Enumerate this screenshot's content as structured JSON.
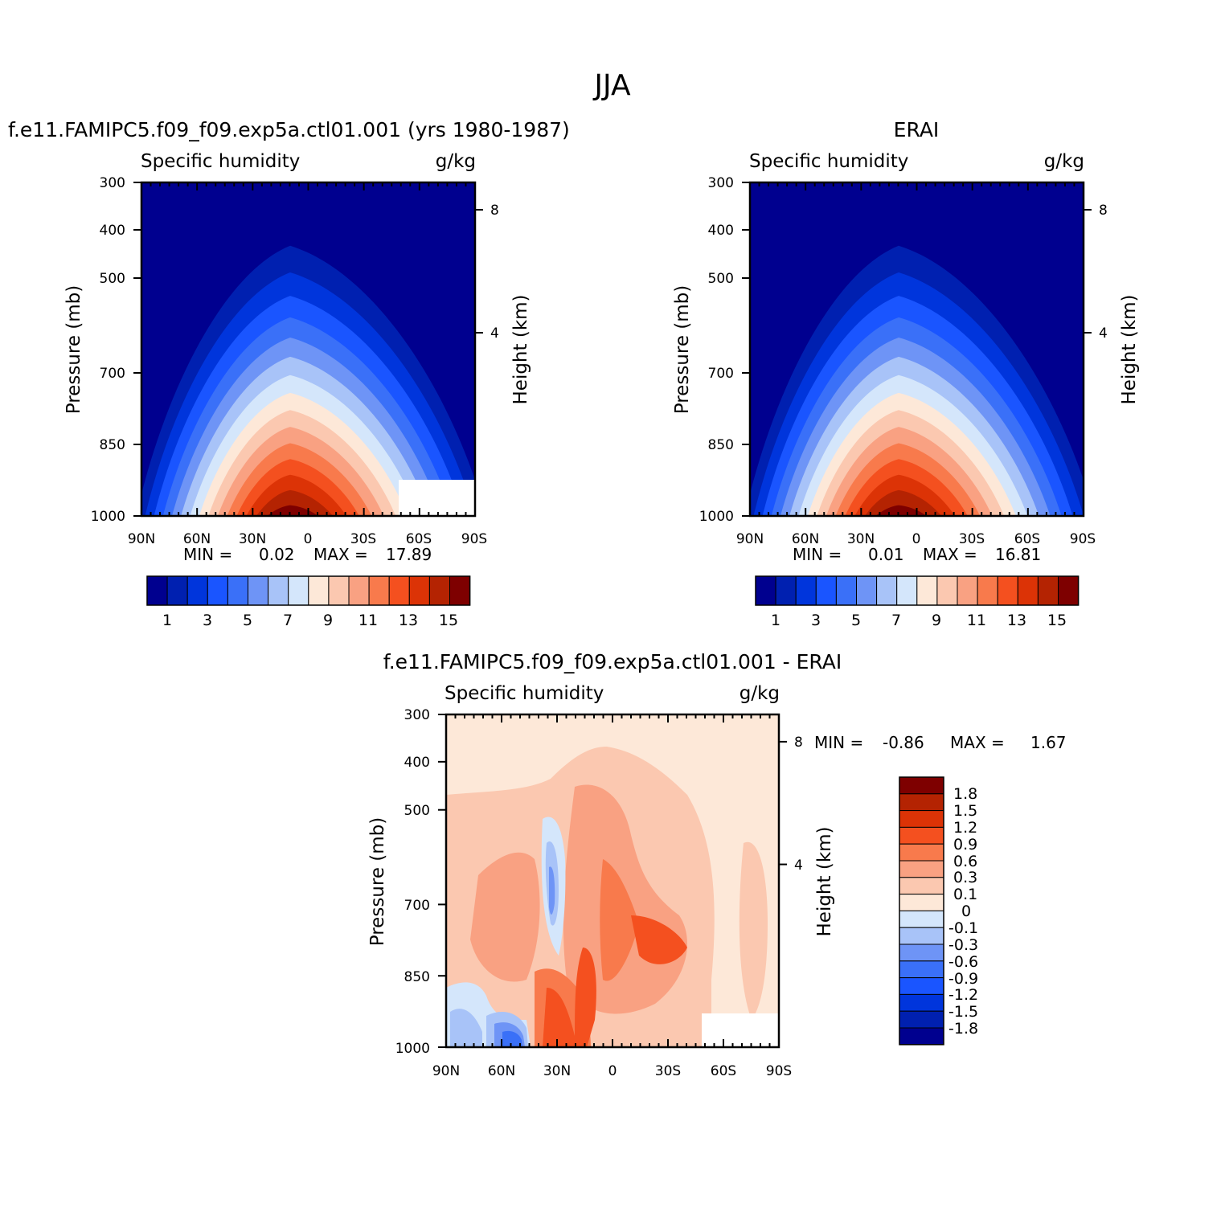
{
  "figure": {
    "title": "JJA"
  },
  "colors": {
    "abs": [
      "#00008f",
      "#0020b0",
      "#0035dc",
      "#1a55ff",
      "#3a70f8",
      "#6e94f6",
      "#a8c3f8",
      "#d4e6fb",
      "#fde8d8",
      "#fbc8b0",
      "#f9a182",
      "#f87a4c",
      "#f4501f",
      "#dc3306",
      "#b42302",
      "#7e0000"
    ],
    "diff": [
      "#7e0000",
      "#b42302",
      "#dc3306",
      "#f4501f",
      "#f87a4c",
      "#f9a182",
      "#fbc8b0",
      "#fde8d8",
      "#d4e6fb",
      "#a8c3f8",
      "#6e94f6",
      "#3a70f8",
      "#1a55ff",
      "#0035dc",
      "#0020b0",
      "#00008f"
    ]
  },
  "chart_data": [
    {
      "type": "heatmap",
      "title": "f.e11.FAMIPC5.f09_f09.exp5a.ctl01.001 (yrs 1980-1987)",
      "variable": "Specific humidity",
      "units": "g/kg",
      "xlabel": "",
      "ylabel": "Pressure (mb)",
      "y2label": "Height (km)",
      "x_ticks": [
        "90N",
        "60N",
        "30N",
        "0",
        "30S",
        "60S",
        "90S"
      ],
      "y_ticks": [
        "300",
        "400",
        "500",
        "700",
        "850",
        "1000"
      ],
      "y2_ticks": [
        "8",
        "4"
      ],
      "min_label": "MIN =",
      "min_value": "0.02",
      "max_label": "MAX =",
      "max_value": "17.89",
      "colorbar_labels": [
        "1",
        "3",
        "5",
        "7",
        "9",
        "11",
        "13",
        "15"
      ],
      "peak_value": 17.89
    },
    {
      "type": "heatmap",
      "title": "ERAI",
      "variable": "Specific humidity",
      "units": "g/kg",
      "xlabel": "",
      "ylabel": "Pressure (mb)",
      "y2label": "Height (km)",
      "x_ticks": [
        "90N",
        "60N",
        "30N",
        "0",
        "30S",
        "60S",
        "90S"
      ],
      "y_ticks": [
        "300",
        "400",
        "500",
        "700",
        "850",
        "1000"
      ],
      "y2_ticks": [
        "8",
        "4"
      ],
      "min_label": "MIN =",
      "min_value": "0.01",
      "max_label": "MAX =",
      "max_value": "16.81",
      "colorbar_labels": [
        "1",
        "3",
        "5",
        "7",
        "9",
        "11",
        "13",
        "15"
      ],
      "peak_value": 16.81
    },
    {
      "type": "heatmap",
      "title": "f.e11.FAMIPC5.f09_f09.exp5a.ctl01.001 - ERAI",
      "variable": "Specific humidity",
      "units": "g/kg",
      "xlabel": "",
      "ylabel": "Pressure (mb)",
      "y2label": "Height (km)",
      "x_ticks": [
        "90N",
        "60N",
        "30N",
        "0",
        "30S",
        "60S",
        "90S"
      ],
      "y_ticks": [
        "300",
        "400",
        "500",
        "700",
        "850",
        "1000"
      ],
      "y2_ticks": [
        "8",
        "4"
      ],
      "min_label": "MIN =",
      "min_value": "-0.86",
      "max_label": "MAX =",
      "max_value": "1.67",
      "colorbar_labels": [
        "1.8",
        "1.5",
        "1.2",
        "0.9",
        "0.6",
        "0.3",
        "0.1",
        "0",
        "-0.1",
        "-0.3",
        "-0.6",
        "-0.9",
        "-1.2",
        "-1.5",
        "-1.8"
      ]
    }
  ]
}
